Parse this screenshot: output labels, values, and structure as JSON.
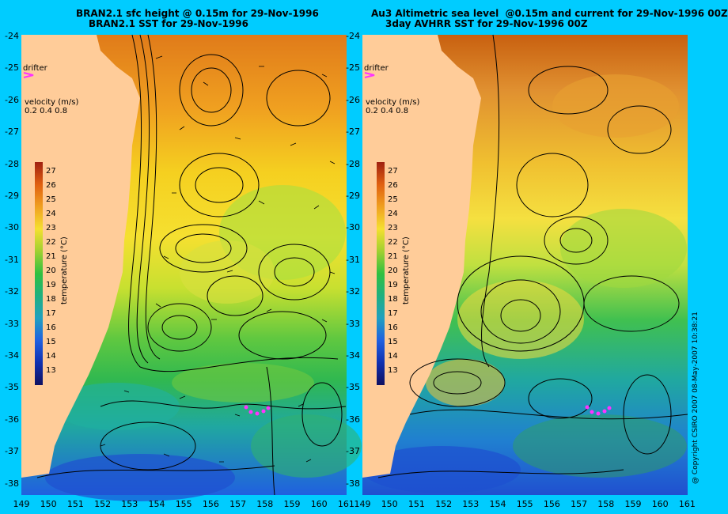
{
  "titles": {
    "left_line1": "BRAN2.1 sfc height @ 0.15m for 29-Nov-1996",
    "left_line2": "BRAN2.1 SST for 29-Nov-1996",
    "right_line1": "Au3 Altimetric sea level  @0.15m and current for 29-Nov-1996 00Z",
    "right_line2": "3day AVHRR SST for 29-Nov-1996 00Z"
  },
  "map_extent": {
    "lon_min": 149,
    "lon_max": 161,
    "lat_min": -38.5,
    "lat_max": -24
  },
  "y_ticks": [
    "-24",
    "-25",
    "-26",
    "-27",
    "-28",
    "-29",
    "-30",
    "-31",
    "-32",
    "-33",
    "-34",
    "-35",
    "-36",
    "-37",
    "-38"
  ],
  "x_ticks_left": [
    "149",
    "150",
    "151",
    "152",
    "153",
    "154",
    "155",
    "156",
    "157",
    "158",
    "159",
    "160",
    "161"
  ],
  "x_ticks_right": [
    "149",
    "150",
    "151",
    "152",
    "153",
    "154",
    "155",
    "156",
    "157",
    "158",
    "159",
    "160",
    "161"
  ],
  "legend": {
    "drifter_label": "drifter",
    "velocity_label": "velocity (m/s)",
    "velocity_scale": "0.2 0.4 0.8",
    "colorbar_title": "temperature (°C)",
    "colorbar_ticks": [
      "27",
      "26",
      "25",
      "24",
      "23",
      "22",
      "21",
      "20",
      "19",
      "18",
      "17",
      "16",
      "15",
      "14",
      "13"
    ]
  },
  "copyright": "@ Copyright CSIRO 2007 08-May-2007 10:38:21",
  "colors": {
    "background": "#00ccff",
    "land": "#ffcc99",
    "drifter": "#ff33ff",
    "contour": "#000000"
  }
}
